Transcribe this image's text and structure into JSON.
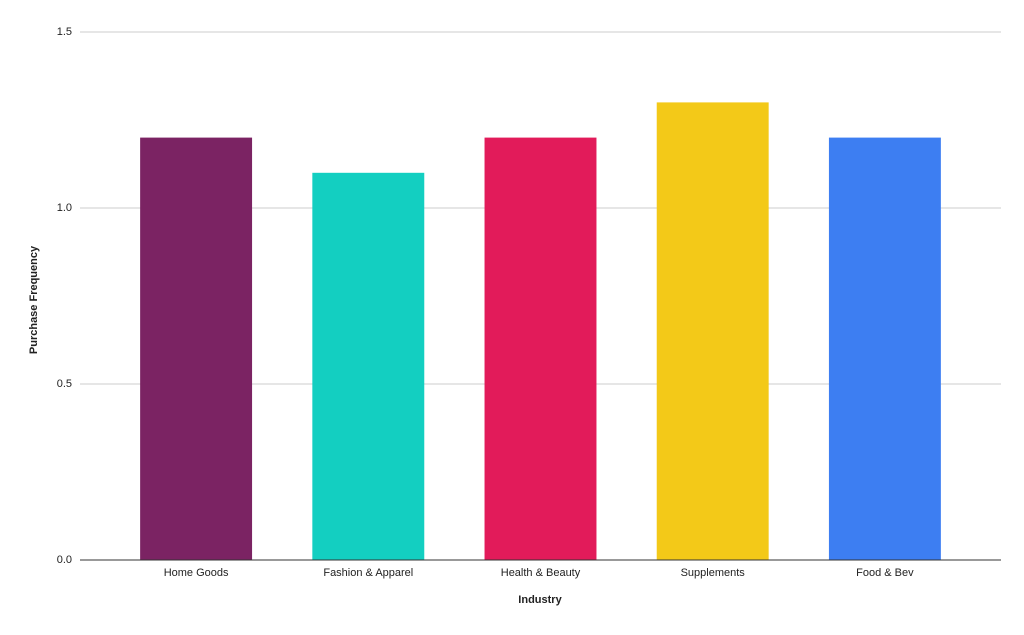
{
  "chart_data": {
    "type": "bar",
    "x_label": "Industry",
    "y_label": "Purchase Frequency",
    "categories": [
      "Home Goods",
      "Fashion & Apparel",
      "Health & Beauty",
      "Supplements",
      "Food & Bev"
    ],
    "values": [
      1.2,
      1.1,
      1.2,
      1.3,
      1.2
    ],
    "colors": [
      "#7b2363",
      "#13cfc1",
      "#e21b5a",
      "#f3c918",
      "#3d7ef2"
    ],
    "ylim": [
      0,
      1.5
    ],
    "yticks": [
      {
        "value": 0,
        "label": "0.0"
      },
      0.5,
      {
        "value": 1,
        "label": "1.0"
      },
      1.5
    ],
    "grid": true
  }
}
